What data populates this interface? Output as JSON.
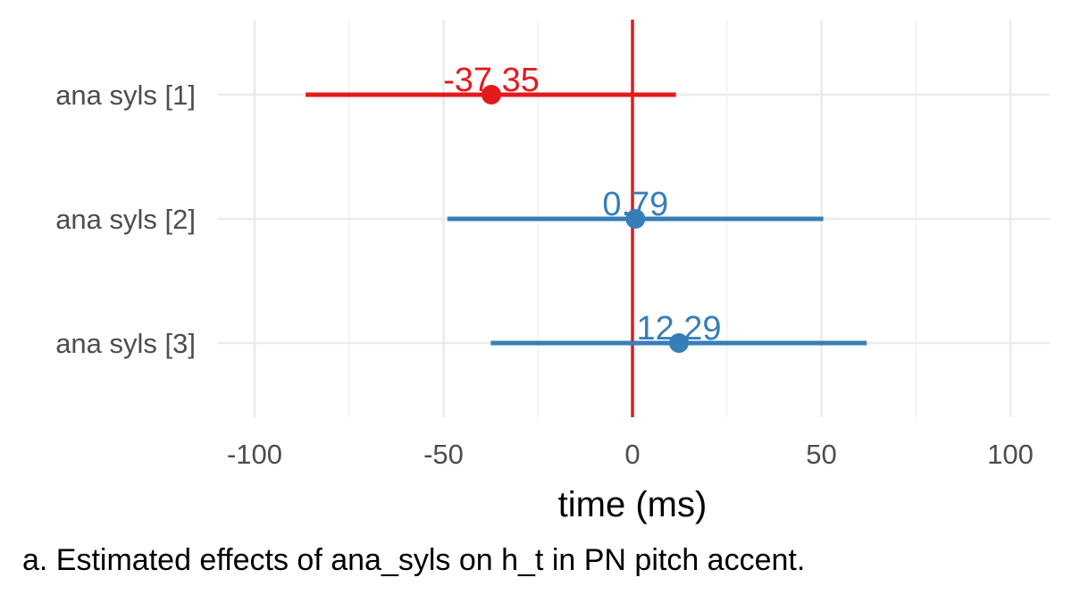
{
  "chart_data": {
    "type": "scatter",
    "subtype": "forest-plot",
    "xlabel": "time (ms)",
    "ylabel": "",
    "xlim": [
      -100,
      100
    ],
    "x_ticks": [
      -100,
      -50,
      0,
      50,
      100
    ],
    "x_tick_labels": [
      "-100",
      "-50",
      "0",
      "50",
      "100"
    ],
    "grid": true,
    "reference_line": {
      "x": 0,
      "color": "#e41a1c"
    },
    "categories": [
      "ana syls [1]",
      "ana syls [2]",
      "ana syls [3]"
    ],
    "points": [
      {
        "label": "ana syls [1]",
        "estimate": -37.35,
        "lower": -86.5,
        "upper": 11.5,
        "value_label": "-37.35",
        "color": "#e41a1c"
      },
      {
        "label": "ana syls [2]",
        "estimate": 0.79,
        "lower": -49.0,
        "upper": 50.5,
        "value_label": "0.79",
        "color": "#377eb8"
      },
      {
        "label": "ana syls [3]",
        "estimate": 12.29,
        "lower": -37.5,
        "upper": 62.0,
        "value_label": "12.29",
        "color": "#377eb8"
      }
    ]
  },
  "caption": "a. Estimated effects of ana_syls on h_t in PN pitch accent."
}
